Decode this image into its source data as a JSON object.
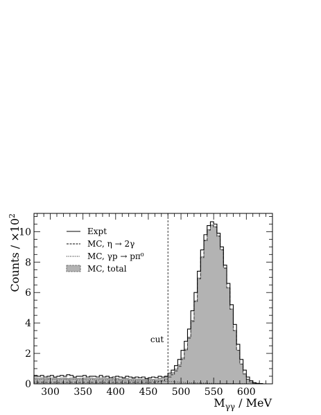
{
  "chart_data": {
    "type": "line",
    "title": "",
    "xlabel": "M",
    "xlabel_sub": "γγ",
    "xlabel_unit": " / MeV",
    "ylabel": "Counts / ×10",
    "ylabel_exp": "2",
    "xlim": [
      275,
      640
    ],
    "ylim": [
      0,
      11.2
    ],
    "x_ticks": [
      300,
      350,
      400,
      450,
      500,
      550,
      600
    ],
    "y_ticks": [
      0,
      2,
      4,
      6,
      8,
      10
    ],
    "grid": false,
    "legend_position": "top-left",
    "legend": [
      {
        "label": "Expt",
        "style": "solid"
      },
      {
        "label": "MC, η → 2γ",
        "style": "dashed"
      },
      {
        "label": "MC, γp → pπ⁰",
        "style": "dotted"
      },
      {
        "label": "MC, total",
        "style": "filled"
      }
    ],
    "annotations": [
      {
        "text": "cut",
        "x": 480
      }
    ],
    "bin_width": 5,
    "bin_edges_start": 275,
    "series": [
      {
        "name": "Expt",
        "values": [
          0.55,
          0.5,
          0.55,
          0.45,
          0.5,
          0.55,
          0.45,
          0.5,
          0.55,
          0.5,
          0.6,
          0.55,
          0.45,
          0.5,
          0.5,
          0.55,
          0.45,
          0.5,
          0.5,
          0.45,
          0.55,
          0.45,
          0.5,
          0.4,
          0.45,
          0.5,
          0.45,
          0.4,
          0.5,
          0.45,
          0.4,
          0.45,
          0.4,
          0.45,
          0.35,
          0.4,
          0.45,
          0.4,
          0.5,
          0.45,
          0.5,
          0.7,
          0.9,
          1.2,
          1.6,
          2.2,
          2.8,
          3.6,
          4.8,
          6.0,
          7.4,
          8.8,
          9.8,
          10.4,
          10.65,
          10.5,
          9.9,
          9.0,
          7.8,
          6.6,
          5.2,
          3.9,
          2.6,
          1.6,
          0.9,
          0.45,
          0.2,
          0.08,
          0.03,
          0.02,
          0,
          0,
          0
        ]
      },
      {
        "name": "MC, η → 2γ",
        "values": [
          0.1,
          0.1,
          0.1,
          0.1,
          0.1,
          0.1,
          0.1,
          0.1,
          0.1,
          0.1,
          0.1,
          0.1,
          0.1,
          0.1,
          0.1,
          0.1,
          0.1,
          0.1,
          0.1,
          0.1,
          0.1,
          0.1,
          0.1,
          0.1,
          0.1,
          0.1,
          0.1,
          0.1,
          0.1,
          0.1,
          0.1,
          0.1,
          0.1,
          0.1,
          0.1,
          0.1,
          0.1,
          0.1,
          0.15,
          0.2,
          0.3,
          0.45,
          0.6,
          0.85,
          1.15,
          1.6,
          2.2,
          3.0,
          4.1,
          5.4,
          6.9,
          8.3,
          9.4,
          10.1,
          10.4,
          10.3,
          9.7,
          8.8,
          7.6,
          6.3,
          4.9,
          3.5,
          2.2,
          1.3,
          0.65,
          0.3,
          0.12,
          0.04,
          0.01,
          0,
          0,
          0,
          0
        ]
      },
      {
        "name": "MC, γp → pπ⁰",
        "values": [
          0.3,
          0.28,
          0.3,
          0.25,
          0.3,
          0.28,
          0.3,
          0.25,
          0.28,
          0.3,
          0.25,
          0.28,
          0.3,
          0.25,
          0.27,
          0.28,
          0.25,
          0.28,
          0.26,
          0.25,
          0.28,
          0.25,
          0.27,
          0.22,
          0.25,
          0.26,
          0.22,
          0.24,
          0.25,
          0.22,
          0.24,
          0.22,
          0.2,
          0.22,
          0.2,
          0.22,
          0.2,
          0.18,
          0.2,
          0.18,
          0.16,
          0.15,
          0.14,
          0.12,
          0.1,
          0.1,
          0.08,
          0.08,
          0.07,
          0.06,
          0.06,
          0.05,
          0.05,
          0.04,
          0.04,
          0.03,
          0.03,
          0.03,
          0.02,
          0.02,
          0.02,
          0.01,
          0.01,
          0.01,
          0.01,
          0,
          0,
          0,
          0,
          0,
          0,
          0,
          0
        ]
      },
      {
        "name": "MC, total",
        "values": [
          0.4,
          0.38,
          0.4,
          0.35,
          0.4,
          0.38,
          0.4,
          0.35,
          0.38,
          0.4,
          0.35,
          0.38,
          0.4,
          0.35,
          0.37,
          0.38,
          0.35,
          0.38,
          0.36,
          0.35,
          0.38,
          0.35,
          0.37,
          0.32,
          0.35,
          0.36,
          0.32,
          0.34,
          0.35,
          0.32,
          0.34,
          0.32,
          0.3,
          0.32,
          0.3,
          0.32,
          0.3,
          0.28,
          0.35,
          0.38,
          0.46,
          0.6,
          0.74,
          0.97,
          1.25,
          1.7,
          2.28,
          3.08,
          4.17,
          5.46,
          6.96,
          8.35,
          9.45,
          10.14,
          10.44,
          10.33,
          9.73,
          8.83,
          7.62,
          6.32,
          4.92,
          3.51,
          2.21,
          1.31,
          0.66,
          0.3,
          0.12,
          0.04,
          0.01,
          0,
          0,
          0,
          0
        ]
      }
    ]
  }
}
